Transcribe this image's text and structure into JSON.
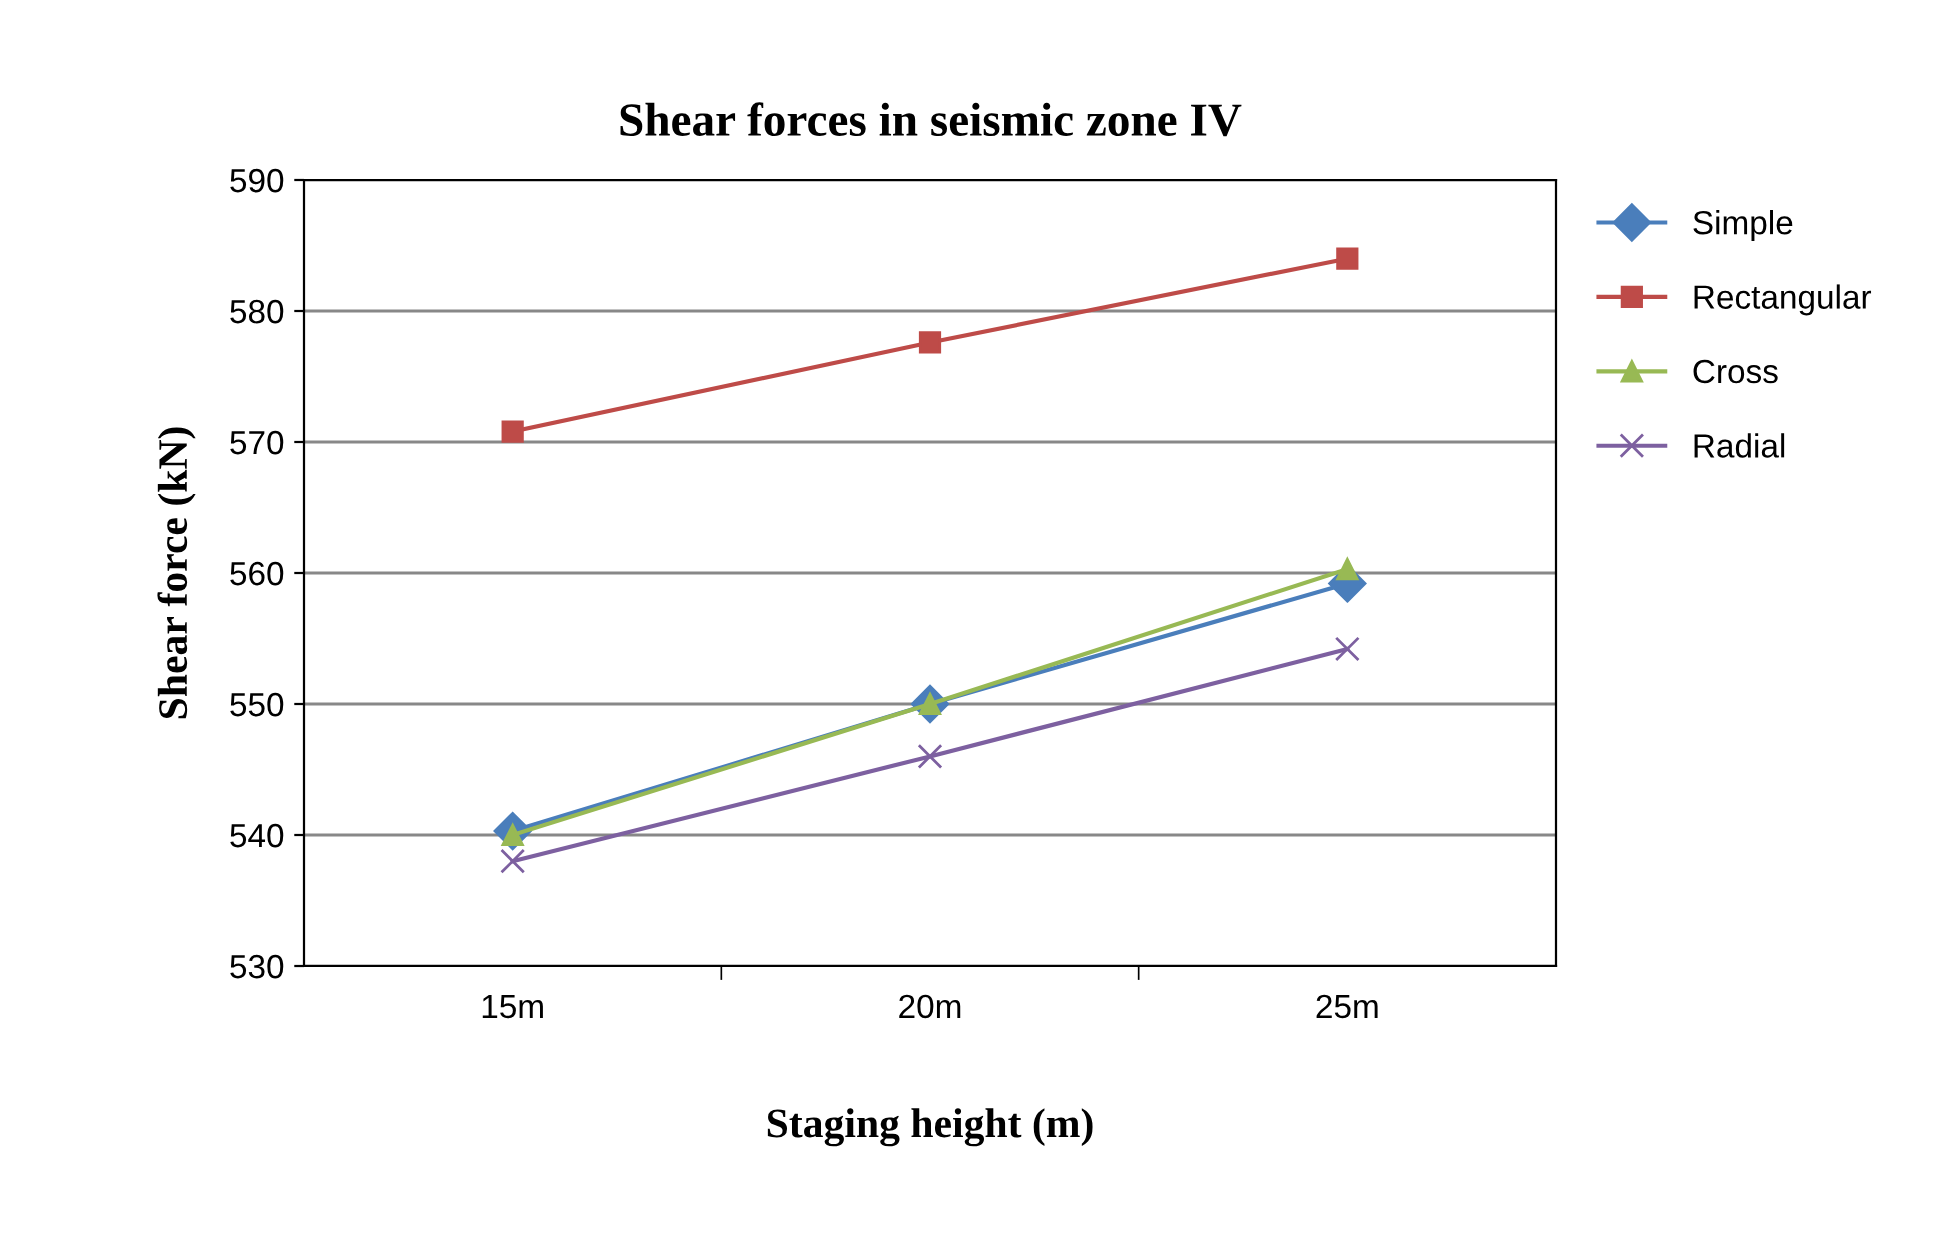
{
  "chart_data": {
    "type": "line",
    "title": "Shear forces in seismic zone IV",
    "xlabel": "Staging height (m)",
    "ylabel": "Shear force (kN)",
    "categories": [
      "15m",
      "20m",
      "25m"
    ],
    "series": [
      {
        "name": "Simple",
        "color": "#4a7ebb",
        "marker": "diamond",
        "values": [
          540.3,
          550.0,
          559.2
        ]
      },
      {
        "name": "Rectangular",
        "color": "#be4b48",
        "marker": "square",
        "values": [
          570.8,
          577.6,
          584.0
        ]
      },
      {
        "name": "Cross",
        "color": "#98b954",
        "marker": "triangle",
        "values": [
          540.0,
          550.0,
          560.3
        ]
      },
      {
        "name": "Radial",
        "color": "#7d60a0",
        "marker": "cross",
        "values": [
          538.0,
          546.0,
          554.2
        ]
      }
    ],
    "ylim": [
      530,
      590
    ],
    "yticks": [
      530,
      540,
      550,
      560,
      570,
      580,
      590
    ],
    "grid": "y",
    "legend": "right",
    "line_style": "solid"
  }
}
